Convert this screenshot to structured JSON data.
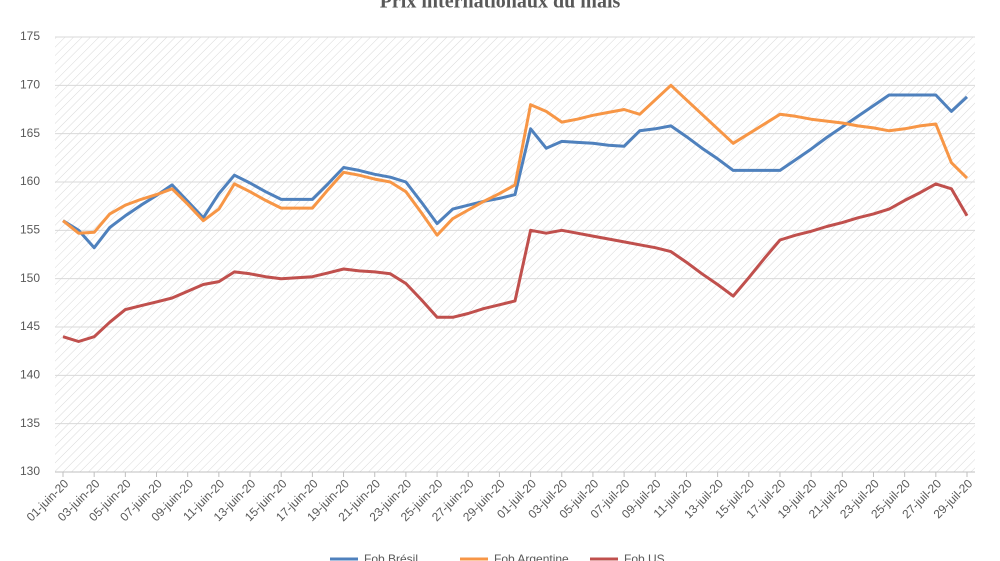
{
  "chart_data": {
    "type": "line",
    "title": "Prix internationaux du maïs",
    "categories": [
      "01-juin-20",
      null,
      "03-juin-20",
      null,
      "05-juin-20",
      null,
      "07-juin-20",
      null,
      "09-juin-20",
      null,
      "11-juin-20",
      null,
      "13-juin-20",
      null,
      "15-juin-20",
      null,
      "17-juin-20",
      null,
      "19-juin-20",
      null,
      "21-juin-20",
      null,
      "23-juin-20",
      null,
      "25-juin-20",
      null,
      "27-juin-20",
      null,
      "29-juin-20",
      null,
      "01-juil-20",
      null,
      "03-juil-20",
      null,
      "05-juil-20",
      null,
      "07-juil-20",
      null,
      "09-juil-20",
      null,
      "11-juil-20",
      null,
      "13-juil-20",
      null,
      "15-juil-20",
      null,
      "17-juil-20",
      null,
      "19-juil-20",
      null,
      "21-juil-20",
      null,
      "23-juil-20",
      null,
      "25-juil-20",
      null,
      "27-juil-20",
      null,
      "29-juil-20"
    ],
    "series": [
      {
        "name": "Fob Brésil",
        "color": "#4f81bd",
        "values": [
          156,
          155,
          153.2,
          155.3,
          156.5,
          157.6,
          158.6,
          159.7,
          158,
          156.3,
          158.8,
          160.7,
          159.9,
          159,
          158.2,
          158.2,
          158.2,
          159.8,
          161.5,
          161.2,
          160.8,
          160.5,
          160,
          157.9,
          155.7,
          157.2,
          157.6,
          158,
          158.3,
          158.7,
          165.5,
          163.5,
          164.2,
          164.1,
          164,
          163.8,
          163.7,
          165.3,
          165.5,
          165.8,
          164.7,
          163.5,
          162.4,
          161.2,
          161.2,
          161.2,
          161.2,
          162.3,
          163.4,
          164.6,
          165.7,
          166.8,
          167.9,
          169,
          169,
          169,
          169,
          167.3,
          168.8
        ]
      },
      {
        "name": "Fob Argentine",
        "color": "#f79646",
        "values": [
          156,
          154.7,
          154.8,
          156.7,
          157.6,
          158.2,
          158.7,
          159.3,
          157.7,
          156,
          157.2,
          159.8,
          159,
          158.1,
          157.3,
          157.3,
          157.3,
          159.2,
          161,
          160.7,
          160.3,
          160,
          159,
          156.8,
          154.5,
          156.2,
          157.1,
          158,
          158.8,
          159.7,
          168,
          167.3,
          166.2,
          166.5,
          166.9,
          167.2,
          167.5,
          167,
          168.5,
          170,
          168.5,
          167,
          165.5,
          164,
          165,
          166,
          167,
          166.8,
          166.5,
          166.3,
          166.1,
          165.8,
          165.6,
          165.3,
          165.5,
          165.8,
          166,
          162,
          160.4
        ]
      },
      {
        "name": "Fob US",
        "color": "#c0504d",
        "values": [
          144,
          143.5,
          144,
          145.5,
          146.8,
          147.2,
          147.6,
          148,
          148.7,
          149.4,
          149.7,
          150.7,
          150.5,
          150.2,
          150,
          150.1,
          150.2,
          150.6,
          151,
          150.8,
          150.7,
          150.5,
          149.5,
          147.8,
          146,
          146,
          146.4,
          146.9,
          147.3,
          147.7,
          155,
          154.7,
          155,
          154.7,
          154.4,
          154.1,
          153.8,
          153.5,
          153.2,
          152.8,
          151.7,
          150.5,
          149.4,
          148.2,
          150.1,
          152.1,
          154,
          154.5,
          154.9,
          155.4,
          155.8,
          156.3,
          156.7,
          157.2,
          158.1,
          158.9,
          159.8,
          159.3,
          156.5
        ]
      }
    ],
    "ylim": [
      130,
      175
    ],
    "yticks": [
      130,
      135,
      140,
      145,
      150,
      155,
      160,
      165,
      170,
      175
    ],
    "grid": true
  }
}
